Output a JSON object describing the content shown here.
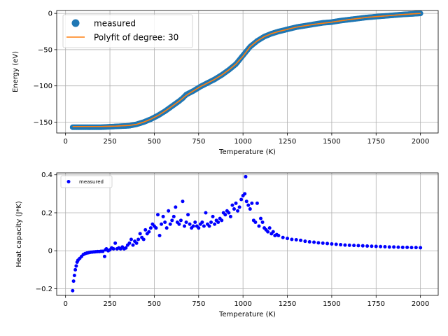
{
  "chart_data": [
    {
      "type": "scatter",
      "xlabel": "Temperature (K)",
      "ylabel": "Energy (eV)",
      "xlim": [
        -50,
        2100
      ],
      "ylim": [
        -165,
        4
      ],
      "xticks": [
        0,
        250,
        500,
        750,
        1000,
        1250,
        1500,
        1750,
        2000
      ],
      "yticks": [
        0,
        -50,
        -100,
        -150
      ],
      "grid": true,
      "legend_position": "top-left",
      "colors": {
        "measured": "#1f77b4",
        "fit": "#ff7f0e"
      },
      "series": [
        {
          "name": "measured",
          "kind": "scatter",
          "x": [
            40,
            80,
            120,
            160,
            200,
            240,
            280,
            320,
            360,
            400,
            440,
            480,
            520,
            560,
            600,
            640,
            660,
            680,
            720,
            760,
            800,
            840,
            880,
            920,
            960,
            1000,
            1020,
            1040,
            1080,
            1120,
            1160,
            1200,
            1250,
            1300,
            1350,
            1400,
            1450,
            1500,
            1550,
            1600,
            1650,
            1700,
            1750,
            1800,
            1850,
            1900,
            1950,
            2000
          ],
          "y": [
            -157,
            -157,
            -157,
            -157,
            -157,
            -156.5,
            -156,
            -155.5,
            -155,
            -153,
            -150,
            -146,
            -141,
            -135,
            -128,
            -121,
            -117,
            -112,
            -107,
            -101,
            -96,
            -91,
            -85,
            -78,
            -70,
            -58,
            -52,
            -46,
            -38,
            -32,
            -28,
            -25,
            -22,
            -19,
            -17,
            -15,
            -13,
            -12,
            -10,
            -8.5,
            -7,
            -5.5,
            -4.5,
            -3.5,
            -2.5,
            -1.5,
            -0.8,
            0
          ]
        },
        {
          "name": "Polyfit of degree: 30",
          "kind": "line",
          "x": [
            40,
            120,
            200,
            280,
            360,
            400,
            440,
            480,
            520,
            560,
            600,
            640,
            680,
            720,
            760,
            800,
            840,
            880,
            920,
            960,
            1000,
            1040,
            1080,
            1120,
            1160,
            1200,
            1300,
            1400,
            1500,
            1600,
            1700,
            1800,
            1900,
            2000
          ],
          "y": [
            -156,
            -156,
            -156,
            -155.5,
            -154.5,
            -153,
            -150,
            -146,
            -141,
            -135,
            -128,
            -121,
            -113,
            -107,
            -101,
            -96,
            -91,
            -85,
            -78,
            -70,
            -59,
            -46,
            -38,
            -32,
            -28,
            -25,
            -19,
            -15,
            -12,
            -8.5,
            -5.5,
            -3.5,
            -1.5,
            0
          ]
        }
      ]
    },
    {
      "type": "scatter",
      "xlabel": "Temperature (K)",
      "ylabel": "Heat capacity (J*K)",
      "xlim": [
        -50,
        2100
      ],
      "ylim": [
        -0.235,
        0.41
      ],
      "xticks": [
        0,
        250,
        500,
        750,
        1000,
        1250,
        1500,
        1750,
        2000
      ],
      "yticks": [
        0.4,
        0.2,
        0.0,
        -0.2
      ],
      "grid": true,
      "legend_position": "top-left",
      "colors": {
        "measured": "#0000ff"
      },
      "series": [
        {
          "name": "measured",
          "kind": "scatter",
          "x": [
            40,
            45,
            50,
            55,
            60,
            65,
            70,
            80,
            90,
            100,
            110,
            120,
            130,
            140,
            150,
            160,
            170,
            180,
            190,
            200,
            210,
            220,
            225,
            230,
            240,
            250,
            260,
            270,
            280,
            290,
            300,
            310,
            320,
            330,
            340,
            350,
            360,
            370,
            380,
            390,
            400,
            410,
            420,
            430,
            440,
            450,
            460,
            470,
            480,
            490,
            500,
            510,
            520,
            530,
            540,
            550,
            560,
            570,
            580,
            590,
            600,
            610,
            620,
            630,
            640,
            650,
            660,
            670,
            680,
            690,
            700,
            710,
            720,
            730,
            740,
            750,
            760,
            770,
            780,
            790,
            800,
            810,
            820,
            830,
            840,
            850,
            860,
            870,
            880,
            890,
            900,
            910,
            920,
            930,
            940,
            950,
            960,
            970,
            980,
            990,
            1000,
            1010,
            1015,
            1020,
            1030,
            1040,
            1050,
            1060,
            1070,
            1080,
            1090,
            1100,
            1110,
            1120,
            1130,
            1140,
            1150,
            1160,
            1170,
            1180,
            1190,
            1200,
            1225,
            1250,
            1275,
            1300,
            1325,
            1350,
            1375,
            1400,
            1425,
            1450,
            1475,
            1500,
            1525,
            1550,
            1575,
            1600,
            1625,
            1650,
            1675,
            1700,
            1725,
            1750,
            1775,
            1800,
            1825,
            1850,
            1875,
            1900,
            1925,
            1950,
            1975,
            2000
          ],
          "y": [
            -0.21,
            -0.16,
            -0.13,
            -0.1,
            -0.08,
            -0.06,
            -0.05,
            -0.04,
            -0.03,
            -0.02,
            -0.015,
            -0.012,
            -0.01,
            -0.008,
            -0.007,
            -0.006,
            -0.005,
            -0.004,
            -0.004,
            -0.003,
            -0.003,
            -0.03,
            0.005,
            0.01,
            0.0,
            0.005,
            0.015,
            0.01,
            0.04,
            0.01,
            0.015,
            0.01,
            0.02,
            0.01,
            0.015,
            0.03,
            0.04,
            0.06,
            0.03,
            0.05,
            0.04,
            0.06,
            0.09,
            0.07,
            0.06,
            0.11,
            0.09,
            0.1,
            0.12,
            0.14,
            0.13,
            0.12,
            0.19,
            0.08,
            0.14,
            0.18,
            0.15,
            0.12,
            0.21,
            0.14,
            0.16,
            0.18,
            0.23,
            0.15,
            0.14,
            0.16,
            0.26,
            0.13,
            0.15,
            0.19,
            0.14,
            0.12,
            0.13,
            0.15,
            0.13,
            0.12,
            0.14,
            0.15,
            0.13,
            0.2,
            0.14,
            0.13,
            0.15,
            0.18,
            0.14,
            0.16,
            0.15,
            0.17,
            0.16,
            0.2,
            0.19,
            0.21,
            0.2,
            0.18,
            0.24,
            0.22,
            0.25,
            0.21,
            0.23,
            0.27,
            0.29,
            0.3,
            0.39,
            0.26,
            0.24,
            0.22,
            0.25,
            0.16,
            0.15,
            0.25,
            0.13,
            0.17,
            0.15,
            0.12,
            0.11,
            0.1,
            0.12,
            0.09,
            0.1,
            0.08,
            0.085,
            0.08,
            0.07,
            0.065,
            0.06,
            0.058,
            0.055,
            0.05,
            0.047,
            0.045,
            0.042,
            0.04,
            0.038,
            0.036,
            0.034,
            0.032,
            0.03,
            0.029,
            0.028,
            0.027,
            0.026,
            0.025,
            0.024,
            0.023,
            0.022,
            0.021,
            0.02,
            0.02,
            0.019,
            0.018,
            0.018,
            0.017,
            0.017,
            0.016
          ]
        }
      ]
    }
  ]
}
